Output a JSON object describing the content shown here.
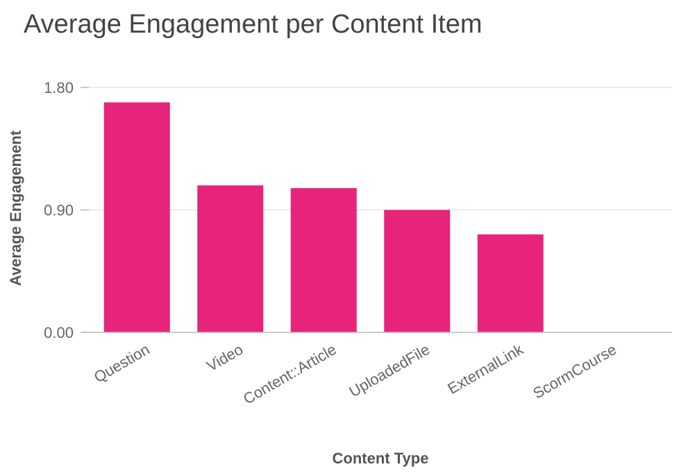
{
  "chart_data": {
    "type": "bar",
    "title": "Average Engagement per Content Item",
    "xlabel": "Content Type",
    "ylabel": "Average Engagement",
    "categories": [
      "Question",
      "Video",
      "Content::Article",
      "UploadedFile",
      "ExternalLink",
      "ScormCourse"
    ],
    "values": [
      1.69,
      1.08,
      1.06,
      0.9,
      0.72,
      0
    ],
    "ylim": [
      0,
      1.8
    ],
    "yticks": [
      "0.00",
      "0.90",
      "1.80"
    ],
    "grid": true,
    "legend": "none",
    "bar_color": "#E8237A",
    "grid_color": "#E6E6E6",
    "axis_color": "#BBBBBB"
  }
}
